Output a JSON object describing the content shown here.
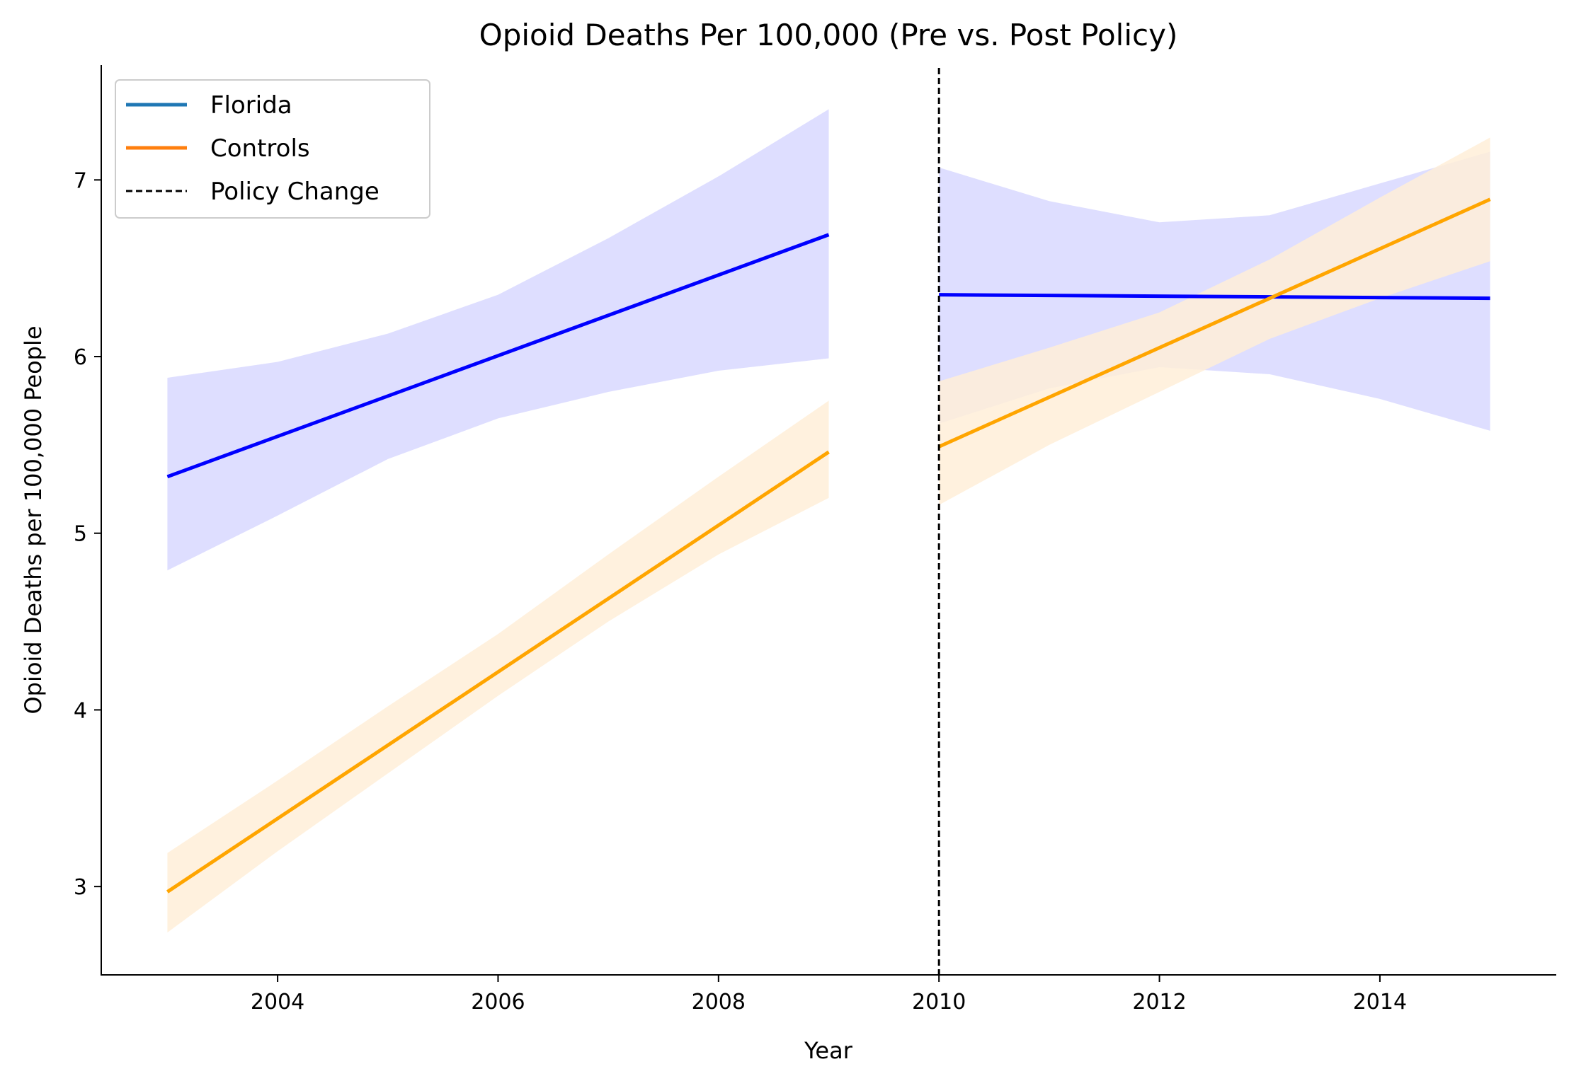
{
  "chart_data": {
    "type": "line",
    "title": "Opioid Deaths Per 100,000 (Pre vs. Post Policy)",
    "xlabel": "Year",
    "ylabel": "Opioid Deaths per 100,000 People",
    "xlim": [
      2002.4,
      2015.6
    ],
    "ylim": [
      2.5,
      7.65
    ],
    "x_ticks": [
      2004,
      2006,
      2008,
      2010,
      2012,
      2014
    ],
    "x_tick_labels": [
      "2004",
      "2006",
      "2008",
      "2010",
      "2012",
      "2014"
    ],
    "y_ticks": [
      3,
      4,
      5,
      6,
      7
    ],
    "y_tick_labels": [
      "3",
      "4",
      "5",
      "6",
      "7"
    ],
    "grid": false,
    "legend_position": "top-left",
    "legend": [
      {
        "label": "Florida",
        "color": "#1f77b4",
        "style": "solid"
      },
      {
        "label": "Controls",
        "color": "#ff7f0e",
        "style": "solid"
      },
      {
        "label": "Policy Change",
        "color": "#000000",
        "style": "dashed"
      }
    ],
    "policy_change_x": 2010,
    "series": [
      {
        "group": "Florida",
        "period": "pre",
        "color": "#0000ff",
        "band_color": "#d8d8ff",
        "x": [
          2003,
          2009
        ],
        "y": [
          5.32,
          6.69
        ],
        "band": {
          "x": [
            2003,
            2004,
            2005,
            2006,
            2007,
            2008,
            2009
          ],
          "lower": [
            4.79,
            5.1,
            5.42,
            5.65,
            5.8,
            5.92,
            5.99
          ],
          "upper": [
            5.88,
            5.97,
            6.13,
            6.35,
            6.67,
            7.02,
            7.4
          ]
        }
      },
      {
        "group": "Controls",
        "period": "pre",
        "color": "#ffa500",
        "band_color": "#ffefd8",
        "x": [
          2003,
          2009
        ],
        "y": [
          2.97,
          5.46
        ],
        "band": {
          "x": [
            2003,
            2004,
            2005,
            2006,
            2007,
            2008,
            2009
          ],
          "lower": [
            2.74,
            3.2,
            3.64,
            4.08,
            4.5,
            4.88,
            5.2
          ],
          "upper": [
            3.19,
            3.6,
            4.02,
            4.43,
            4.88,
            5.32,
            5.75
          ]
        }
      },
      {
        "group": "Florida",
        "period": "post",
        "color": "#0000ff",
        "band_color": "#d8d8ff",
        "x": [
          2010,
          2015
        ],
        "y": [
          6.35,
          6.33
        ],
        "band": {
          "x": [
            2010,
            2011,
            2012,
            2013,
            2014,
            2015
          ],
          "lower": [
            5.62,
            5.82,
            5.94,
            5.9,
            5.76,
            5.58
          ],
          "upper": [
            7.07,
            6.88,
            6.76,
            6.8,
            6.98,
            7.16
          ]
        }
      },
      {
        "group": "Controls",
        "period": "post",
        "color": "#ffa500",
        "band_color": "#ffefd8",
        "x": [
          2010,
          2015
        ],
        "y": [
          5.49,
          6.89
        ],
        "band": {
          "x": [
            2010,
            2011,
            2012,
            2013,
            2014,
            2015
          ],
          "lower": [
            5.16,
            5.5,
            5.8,
            6.1,
            6.33,
            6.54
          ],
          "upper": [
            5.86,
            6.05,
            6.25,
            6.55,
            6.9,
            7.24
          ]
        }
      }
    ]
  }
}
